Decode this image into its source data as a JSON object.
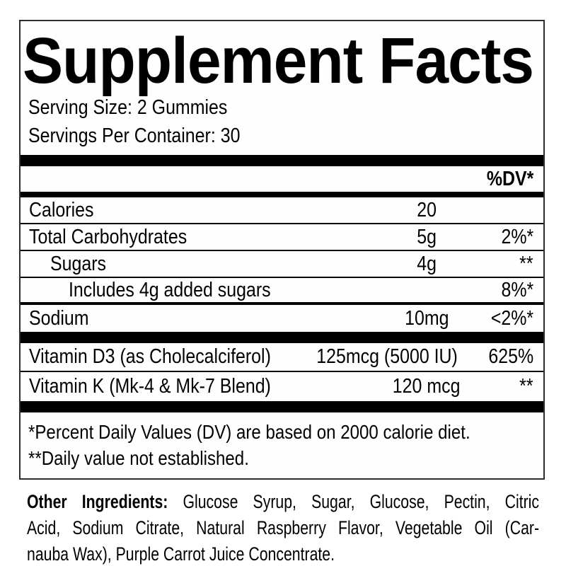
{
  "label": {
    "title": "Supplement Facts",
    "serving_size": "Serving Size: 2 Gummies",
    "servings_per_container": "Servings Per Container: 30",
    "dv_header": "%DV*",
    "rows": [
      {
        "name": "Calories",
        "amount": "20",
        "dv": ""
      },
      {
        "name": "Total Carbohydrates",
        "amount": "5g",
        "dv": "2%*"
      },
      {
        "name": "Sugars",
        "amount": "4g",
        "dv": "**"
      },
      {
        "name": "Includes 4g added sugars",
        "amount": "",
        "dv": "8%*"
      },
      {
        "name": "Sodium",
        "amount": "10mg",
        "dv": "<2%*"
      },
      {
        "name": "Vitamin D3 (as Cholecalciferol)",
        "amount": "125mcg (5000 IU)",
        "dv": "625%"
      },
      {
        "name": "Vitamin K (Mk-4 & Mk-7 Blend)",
        "amount": "120 mcg",
        "dv": "**"
      }
    ],
    "footnotes": [
      "*Percent Daily Values (DV) are based on 2000 calorie diet.",
      "**Daily value not established."
    ],
    "other_ingredients": {
      "label": "Other Ingredients:",
      "line1_rest": " Glucose Syrup, Sugar, Glucose, Pectin, Citric",
      "line2": "Acid, Sodium Citrate, Natural Raspberry Flavor, Vegetable Oil (Car-",
      "line3": "nauba Wax), Purple Carrot Juice Concentrate."
    }
  },
  "colors": {
    "text": "#000000",
    "bars": "#000000",
    "box_border": "#2e2e2e",
    "background": "#ffffff"
  }
}
